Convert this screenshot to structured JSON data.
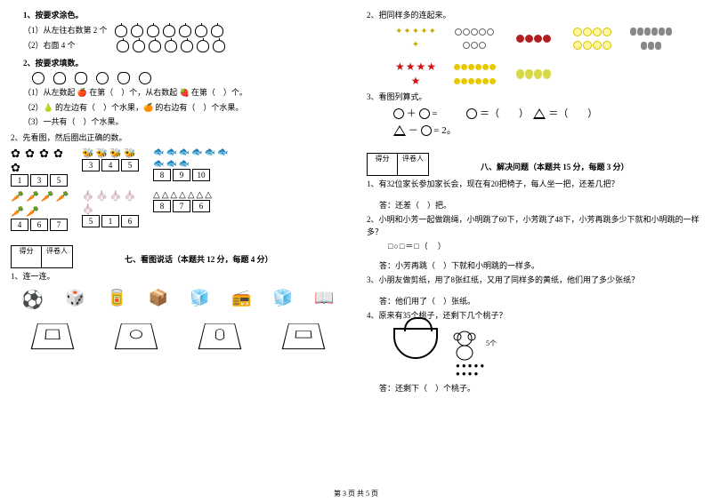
{
  "left": {
    "q1_title": "1、按要求涂色。",
    "q1_1": "（1）从左往右数第 2 个",
    "q1_2": "（2）右面 4 个",
    "apple_count_per_row": 7,
    "q2_title": "2、按要求填数。",
    "q2_1": "（1）从左数起 🍎 在第（　）个，从右数起 🍓 在第（　）个。",
    "q2_2": "（2）🍐 的左边有（　）个水果，🍊 的右边有（　）个水果。",
    "q2_3": "（3）一共有（　）个水果。",
    "q2b_title": "2、先看图，然后圈出正确的数。",
    "grid": {
      "row1": [
        [
          "1",
          "3",
          "5"
        ],
        [
          "3",
          "4",
          "5"
        ],
        [
          "8",
          "9",
          "10"
        ]
      ],
      "row2": [
        [
          "4",
          "6",
          "7"
        ],
        [
          "5",
          "1",
          "6"
        ],
        [
          "8",
          "7",
          "6"
        ]
      ]
    },
    "score_labels": [
      "得分",
      "评卷人"
    ],
    "sec7_title": "七、看图说话（本题共 12 分，每题 4 分）",
    "sec7_q1": "1、连一连。",
    "items": [
      "⚽",
      "🎲",
      "🥫",
      "📦",
      "🧊",
      "📻",
      "🧊",
      "📖"
    ]
  },
  "right": {
    "q2_title": "2、把同样多的连起来。",
    "clusters": [
      {
        "type": "star4",
        "glyph": "✦",
        "count": 6,
        "color_class": "star4"
      },
      {
        "type": "coin",
        "count": 8
      },
      {
        "type": "redball",
        "count": 4
      },
      {
        "type": "smiley",
        "count": 8
      },
      {
        "type": "grayblob",
        "count": 9
      },
      {
        "type": "redstar",
        "glyph": "★",
        "count": 5,
        "color_class": "redstar"
      },
      {
        "type": "duck",
        "count": 12
      },
      {
        "type": "pear",
        "count": 4
      }
    ],
    "q3_title": "3、看图列算式。",
    "eq1_suffix": " =",
    "eq2_suffix": " = 2。",
    "eq_right1": "＝（　　）",
    "eq_right2": "＝（　　）",
    "score_labels": [
      "得分",
      "评卷人"
    ],
    "sec8_title": "八、解决问题（本题共 15 分，每题 3 分）",
    "p1": "1、有32位家长参加家长会，现在有20把椅子，每人坐一把，还差几把？",
    "p1_ans": "答：还差（　）把。",
    "p2": "2、小明和小芳一起做跳绳，小明跳了60下，小芳跳了48下，小芳再跳多少下就和小明跳的一样多？",
    "p2_eq": "□○□＝□（　）",
    "p2_ans": "答：小芳再跳（　）下就和小明跳的一样多。",
    "p3": "3、小朋友做剪纸，用了8张红纸，又用了同样多的黄纸，他们用了多少张纸？",
    "p3_ans": "答：他们用了（　）张纸。",
    "p4": "4、原来有35个桃子，还剩下几个桃子？",
    "p4_side": "5个",
    "p4_ans": "答：还剩下（　）个桃子。"
  },
  "footer": "第 3 页  共 5 页"
}
